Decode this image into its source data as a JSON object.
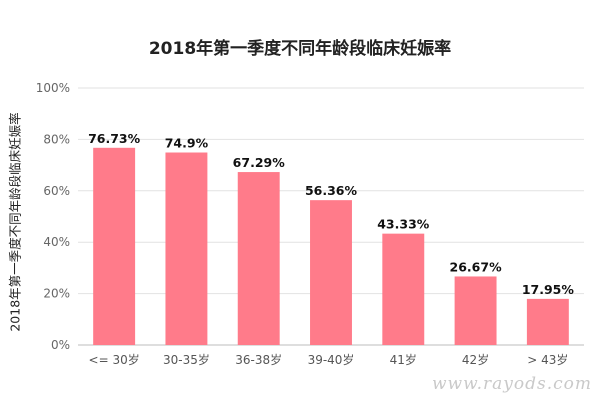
{
  "chart_data": {
    "type": "bar",
    "title": "2018年第一季度不同年龄段临床妊娠率",
    "ylabel": "2018年第一季度不同年龄段临床妊娠率",
    "xlabel": "",
    "categories": [
      "<= 30岁",
      "30-35岁",
      "36-38岁",
      "39-40岁",
      "41岁",
      "42岁",
      "> 43岁"
    ],
    "values": [
      76.73,
      74.9,
      67.29,
      56.36,
      43.33,
      26.67,
      17.95
    ],
    "data_labels": [
      "76.73%",
      "74.9%",
      "67.29%",
      "56.36%",
      "43.33%",
      "26.67%",
      "17.95%"
    ],
    "ylim": [
      0,
      100
    ],
    "yticks": [
      "0%",
      "20%",
      "40%",
      "60%",
      "80%",
      "100%"
    ],
    "grid": true,
    "bar_color": "#ff7b8a"
  },
  "watermark": "www.rayods.com"
}
